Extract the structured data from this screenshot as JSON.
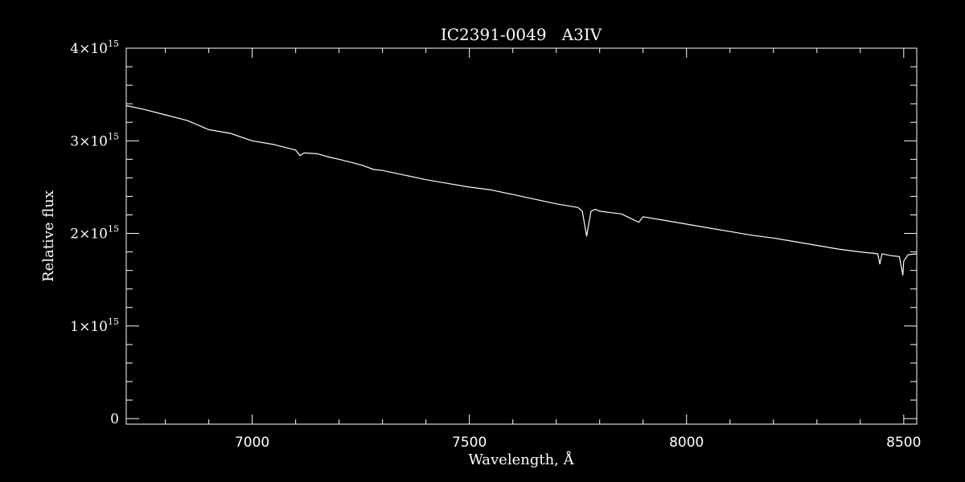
{
  "chart_data": {
    "type": "line",
    "title": "IC2391-0049   A3IV",
    "xlabel": "Wavelength, Å",
    "ylabel": "Relative flux",
    "xlim": [
      6710,
      8530
    ],
    "ylim": [
      -60000000000000.0,
      4000000000000000.0
    ],
    "x_ticks": [
      7000,
      7500,
      8000,
      8500
    ],
    "y_ticks": [
      {
        "value": 0,
        "mantissa": "0",
        "exponent": ""
      },
      {
        "value": 1000000000000000.0,
        "mantissa": "1×10",
        "exponent": "15"
      },
      {
        "value": 2000000000000000.0,
        "mantissa": "2×10",
        "exponent": "15"
      },
      {
        "value": 3000000000000000.0,
        "mantissa": "3×10",
        "exponent": "15"
      },
      {
        "value": 4000000000000000.0,
        "mantissa": "4×10",
        "exponent": "15"
      }
    ],
    "grid": false,
    "colors": {
      "background": "#000000",
      "foreground": "#ffffff"
    },
    "series": [
      {
        "x": [
          6710,
          6750,
          6800,
          6850,
          6860,
          6870,
          6900,
          6950,
          7000,
          7050,
          7100,
          7110,
          7120,
          7150,
          7180,
          7200,
          7250,
          7280,
          7300,
          7350,
          7400,
          7450,
          7500,
          7550,
          7600,
          7620,
          7650,
          7700,
          7750,
          7760,
          7770,
          7780,
          7790,
          7800,
          7850,
          7890,
          7900,
          7950,
          8000,
          8050,
          8100,
          8150,
          8200,
          8250,
          8300,
          8350,
          8400,
          8440,
          8445,
          8450,
          8470,
          8490,
          8498,
          8500,
          8510,
          8530
        ],
        "y": [
          3380000000000000.0,
          3340000000000000.0,
          3280000000000000.0,
          3220000000000000.0,
          3200000000000000.0,
          3180000000000000.0,
          3120000000000000.0,
          3080000000000000.0,
          3000000000000000.0,
          2960000000000000.0,
          2900000000000000.0,
          2840000000000000.0,
          2870000000000000.0,
          2860000000000000.0,
          2820000000000000.0,
          2800000000000000.0,
          2740000000000000.0,
          2690000000000000.0,
          2680000000000000.0,
          2630000000000000.0,
          2580000000000000.0,
          2540000000000000.0,
          2500000000000000.0,
          2470000000000000.0,
          2420000000000000.0,
          2400000000000000.0,
          2370000000000000.0,
          2320000000000000.0,
          2280000000000000.0,
          2240000000000000.0,
          1970000000000000.0,
          2240000000000000.0,
          2260000000000000.0,
          2240000000000000.0,
          2210000000000000.0,
          2120000000000000.0,
          2180000000000000.0,
          2140000000000000.0,
          2100000000000000.0,
          2060000000000000.0,
          2020000000000000.0,
          1980000000000000.0,
          1950000000000000.0,
          1910000000000000.0,
          1870000000000000.0,
          1830000000000000.0,
          1800000000000000.0,
          1780000000000000.0,
          1670000000000000.0,
          1780000000000000.0,
          1760000000000000.0,
          1750000000000000.0,
          1550000000000000.0,
          1700000000000000.0,
          1770000000000000.0,
          1780000000000000.0
        ]
      }
    ]
  }
}
